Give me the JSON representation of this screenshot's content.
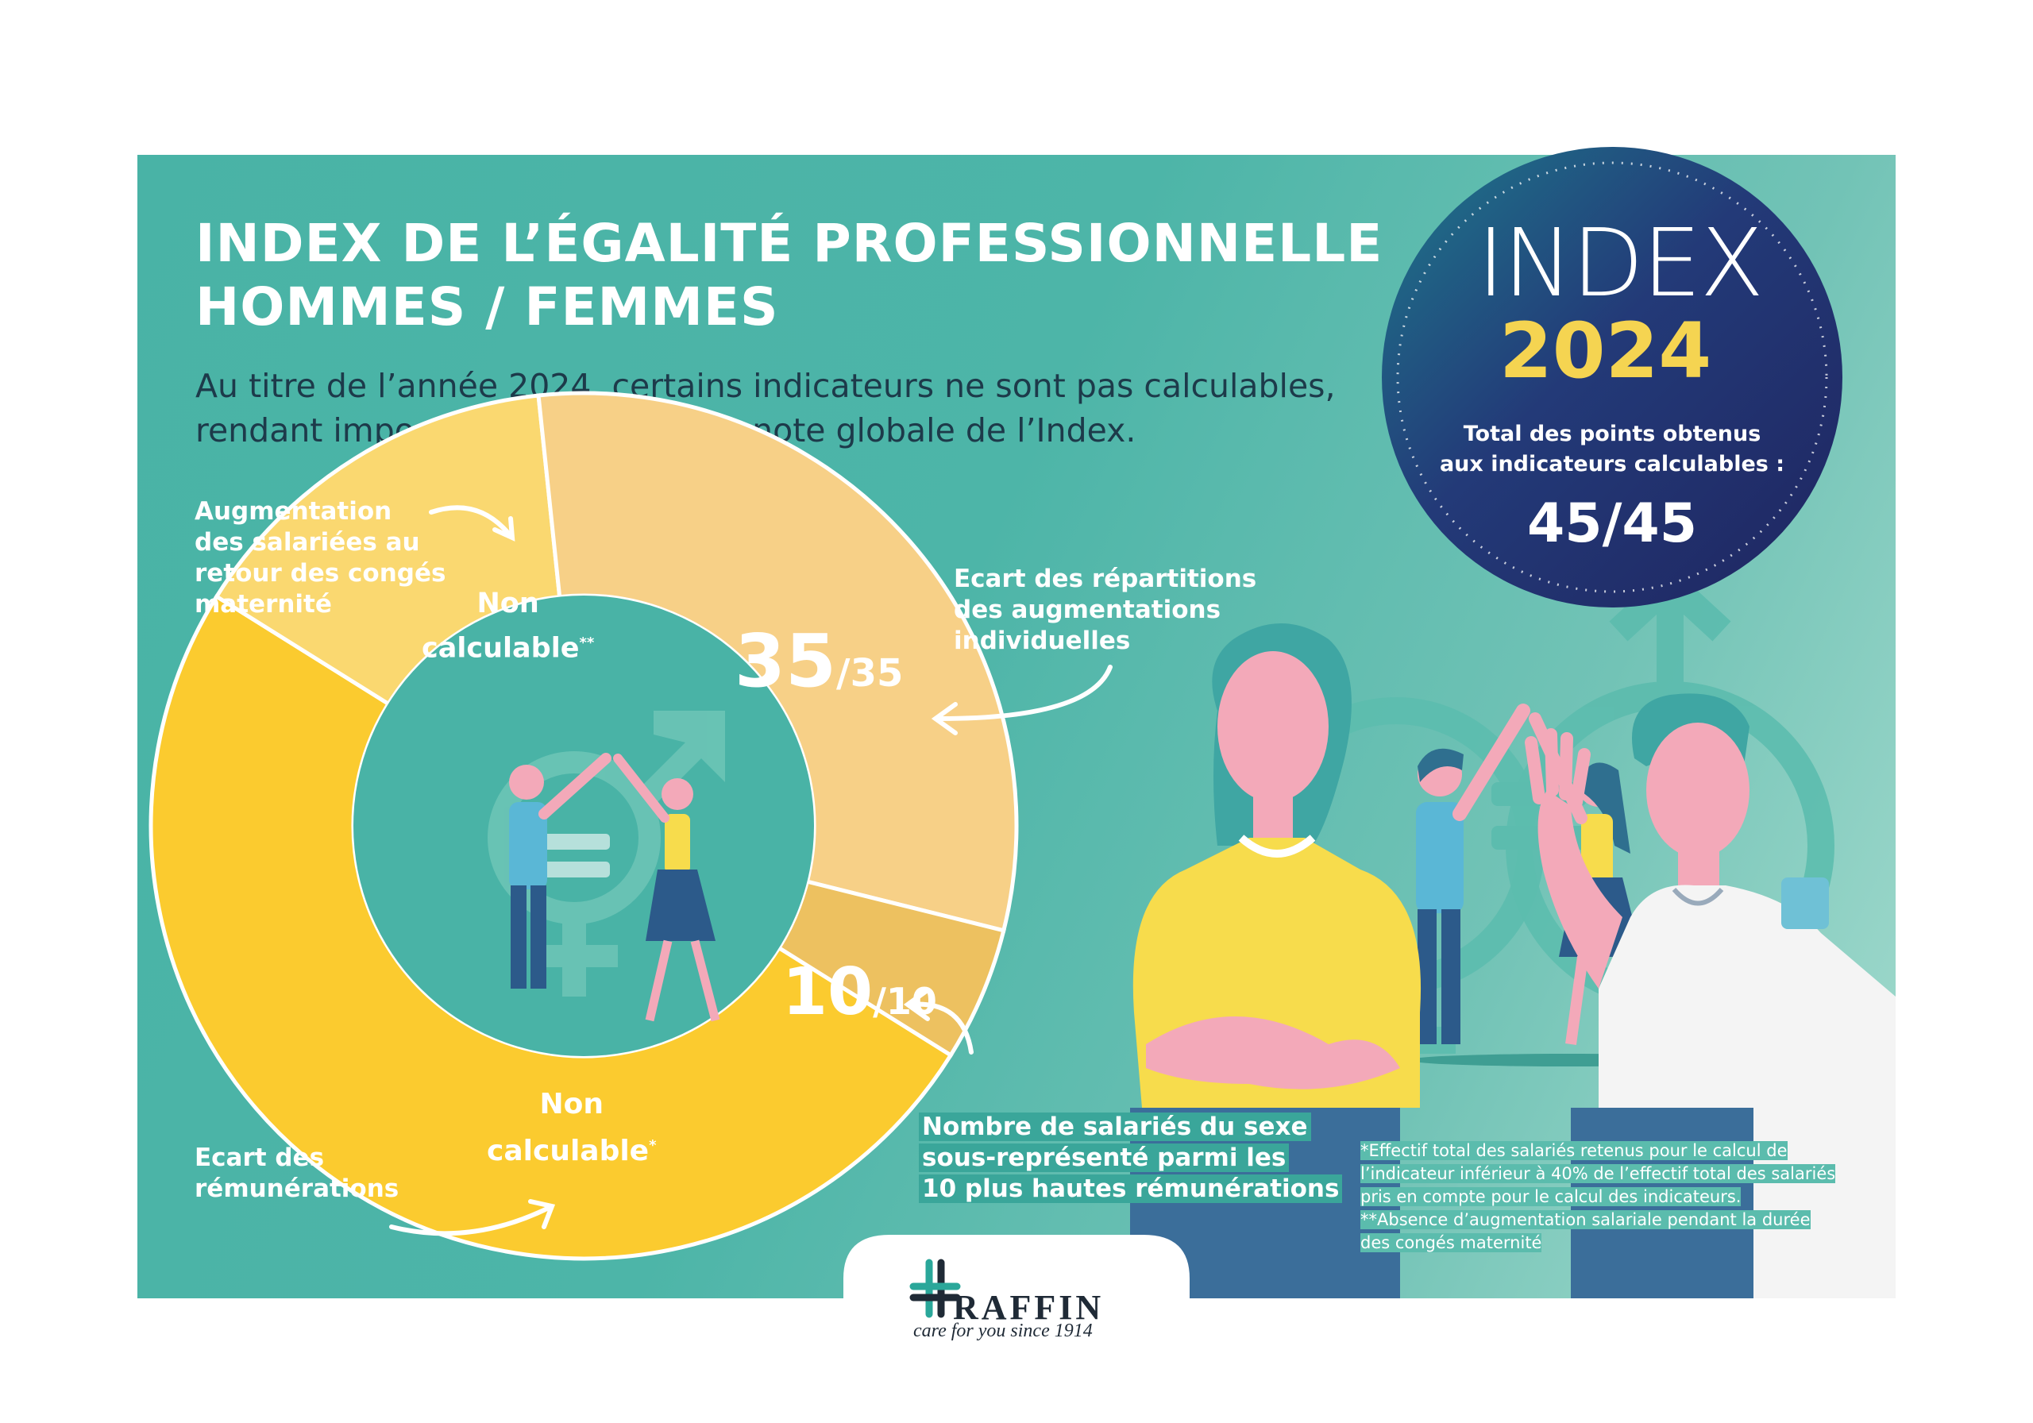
{
  "title_line1": "INDEX DE L’ÉGALITÉ PROFESSIONNELLE",
  "title_line2": "HOMMES / FEMMES",
  "subtitle_line1": "Au titre de l’année 2024, certains indicateurs ne sont pas calculables,",
  "subtitle_line2": "rendant impossible le calcul de la note globale de l’Index.",
  "badge": {
    "word": "INDEX",
    "year": "2024",
    "total_line1": "Total des points obtenus",
    "total_line2": "aux indicateurs calculables :",
    "score": "45/45"
  },
  "donut": {
    "segments": [
      {
        "name": "Ecart des rémunérations",
        "value_text": "Non calculable",
        "marker": "*",
        "color": "#fbcb2f"
      },
      {
        "name": "Augmentation des salariées au retour des congés maternité",
        "value_text": "Non calculable",
        "marker": "**",
        "color": "#fad870"
      },
      {
        "name": "Ecart des répartitions des augmentations individuelles",
        "score": "35",
        "max": "/35",
        "color": "#f7d087"
      },
      {
        "name": "Nombre de salariés du sexe sous-représenté parmi les 10 plus hautes rémunérations",
        "score": "10",
        "max": "/10",
        "color": "#edc160"
      }
    ]
  },
  "labels": {
    "augmentation": [
      "Augmentation",
      "des salariées au",
      "retour des congés",
      "maternité"
    ],
    "non_calc_top": [
      "Non",
      "calculable"
    ],
    "non_calc_top_mark": "**",
    "non_calc_bottom": [
      "Non",
      "calculable"
    ],
    "non_calc_bottom_mark": "*",
    "ecart_repartitions": [
      "Ecart des répartitions",
      "des augmentations",
      "individuelles"
    ],
    "ecart_remunerations": [
      "Ecart des",
      "rémunérations"
    ],
    "nombre_salaries": [
      "Nombre de salariés du sexe",
      "sous-représenté parmi les",
      "10 plus hautes rémunérations"
    ],
    "score35": "35",
    "score35_max": "/35",
    "score10": "10",
    "score10_max": "/10"
  },
  "footnotes": [
    "*Effectif total des salariés retenus pour le calcul de",
    "l’indicateur inférieur à 40% de l’effectif total des salariés",
    "pris en compte pour le calcul des indicateurs.",
    "**Absence d’augmentation salariale pendant la durée",
    "des congés maternité"
  ],
  "logo": {
    "name": "RAFFIN",
    "tagline": "care for you since 1914"
  },
  "colors": {
    "panel": "#4db5a8",
    "badge": "#232e6b",
    "accent_yellow": "#f5d451"
  },
  "icons": [
    "male-symbol-icon",
    "female-symbol-icon",
    "equals-icon",
    "arrow-icon"
  ]
}
